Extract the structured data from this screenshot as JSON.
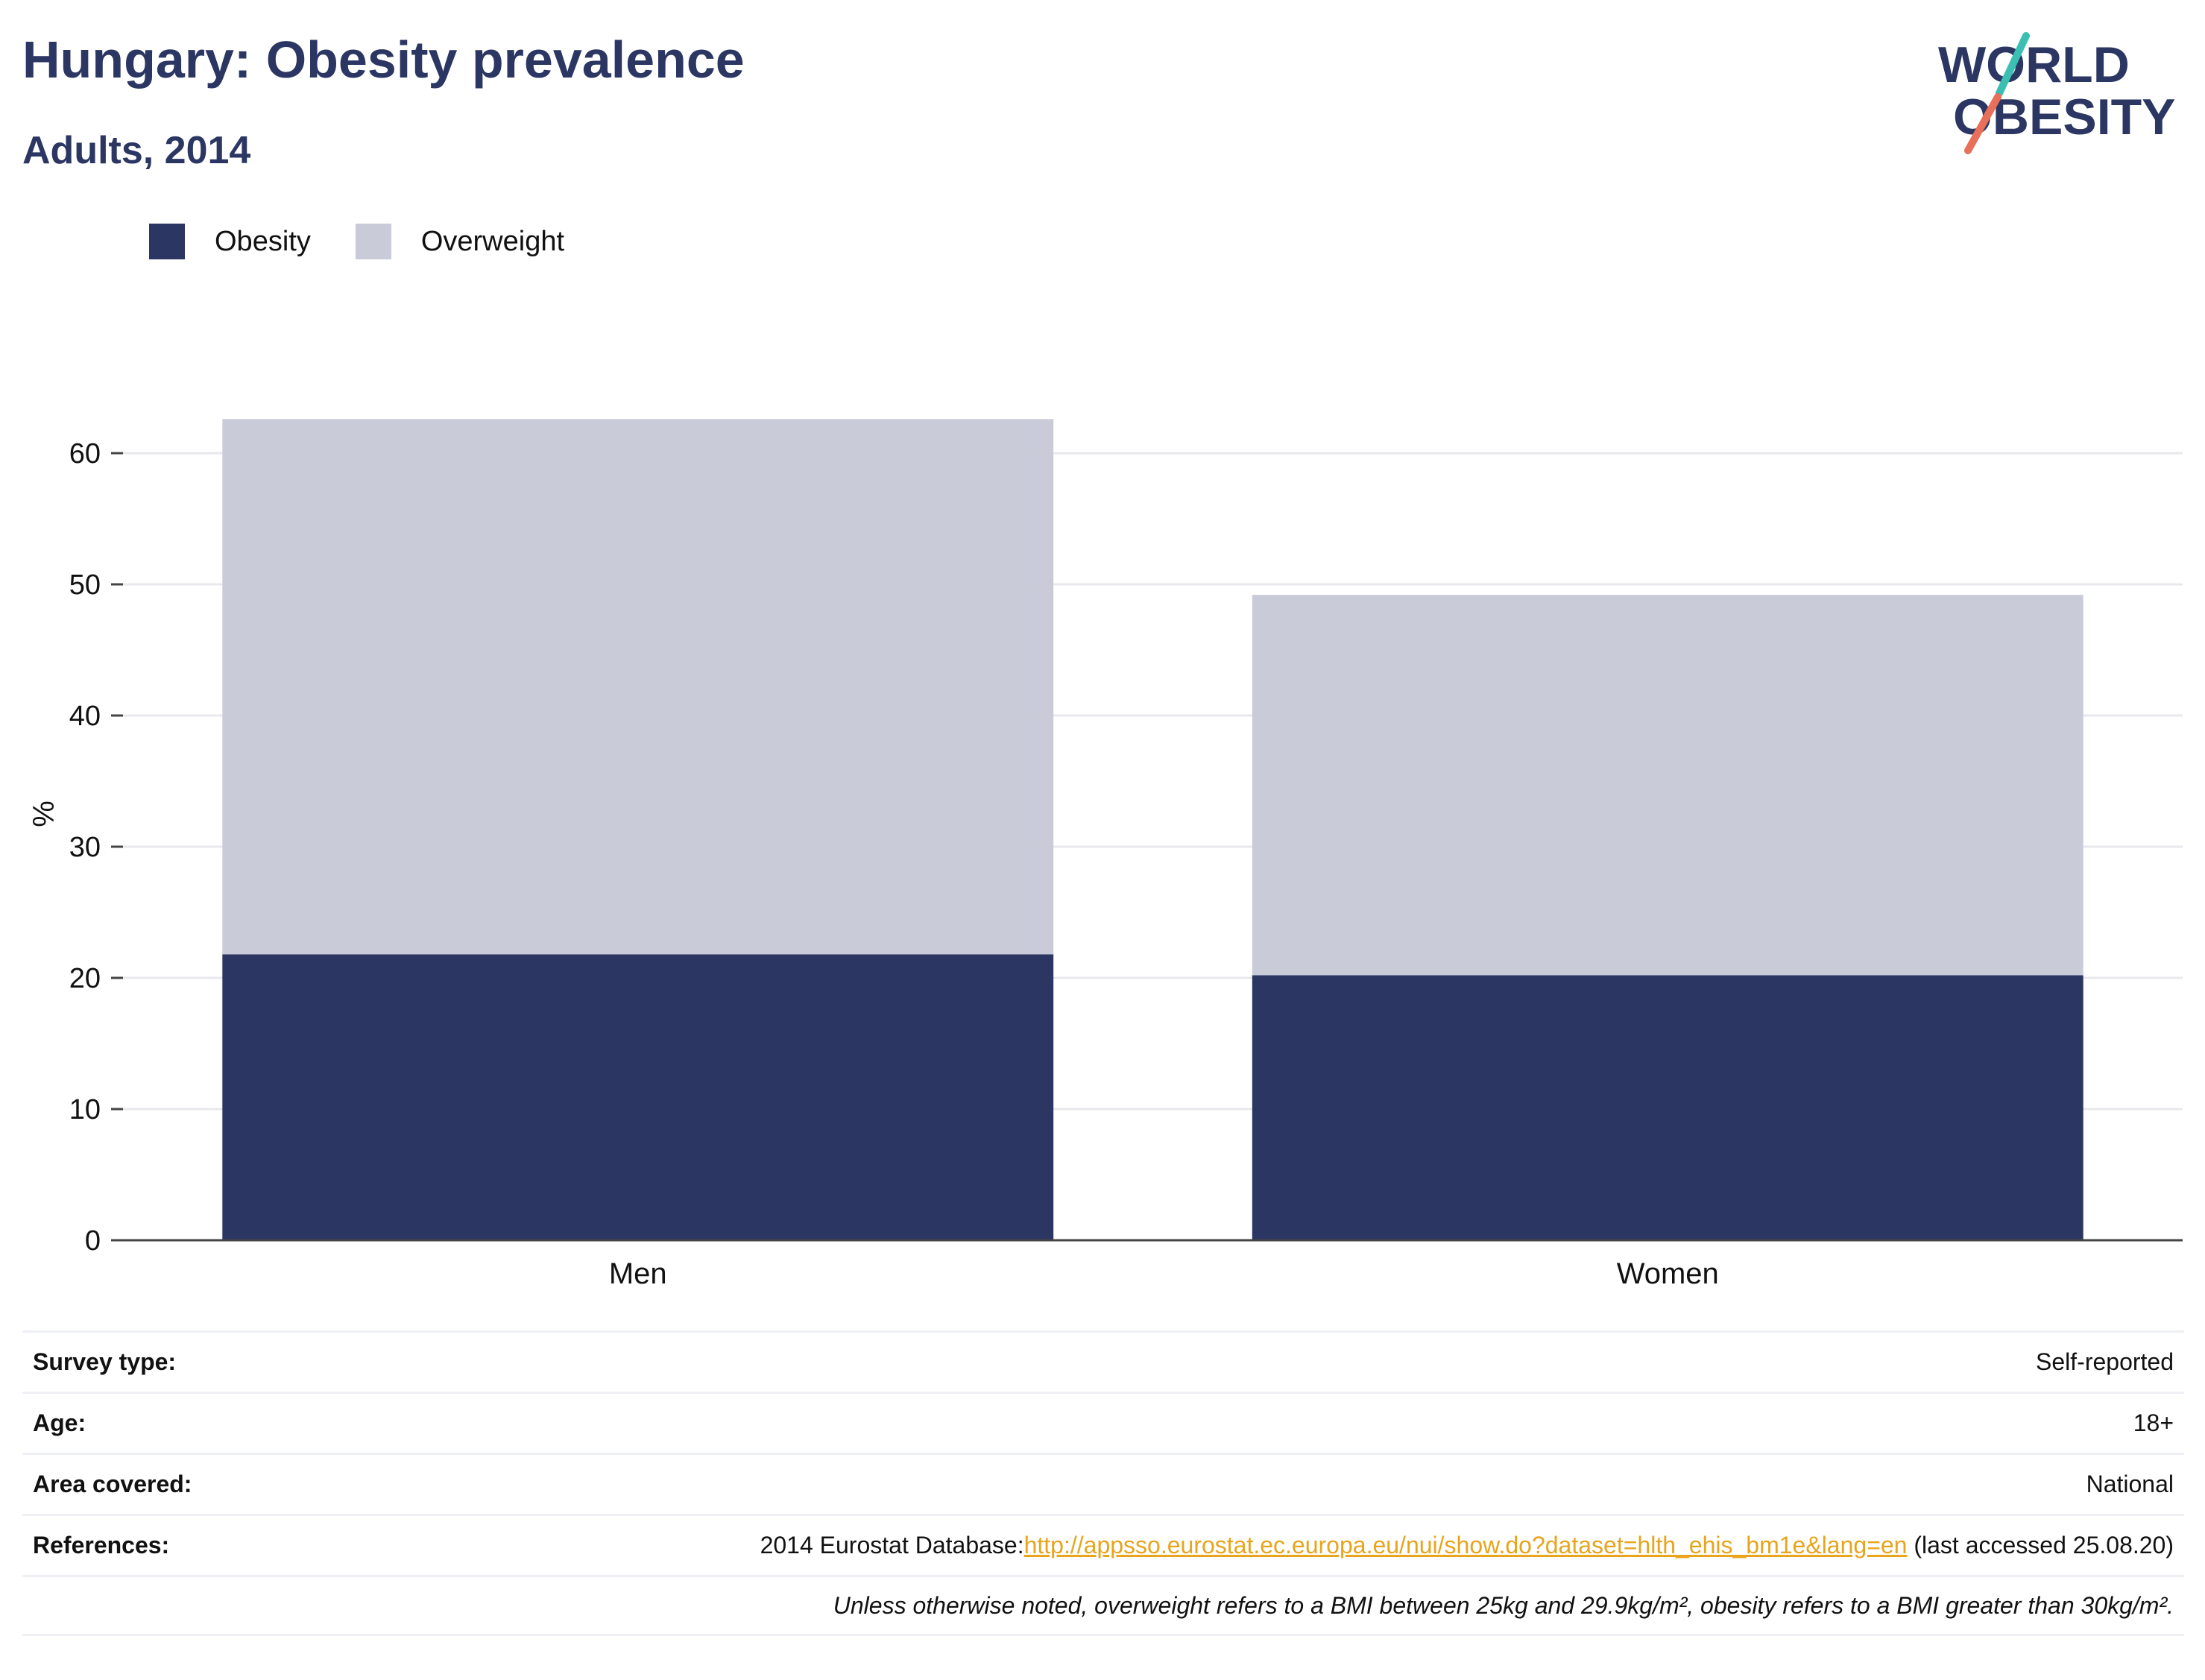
{
  "header": {
    "title": "Hungary: Obesity prevalence",
    "subtitle": "Adults, 2014"
  },
  "logo": {
    "line1": "WORLD",
    "line2": "OBESITY",
    "icon": "world-obesity-logo"
  },
  "colors": {
    "obesity": "#2b3663",
    "overweight": "#c9ccd8",
    "accent_teal": "#3bbfb3",
    "accent_coral": "#e8705a",
    "link": "#e8a51c"
  },
  "legend": [
    {
      "label": "Obesity",
      "color": "#2b3663"
    },
    {
      "label": "Overweight",
      "color": "#c9ccd8"
    }
  ],
  "chart_data": {
    "type": "bar",
    "stacked": true,
    "categories": [
      "Men",
      "Women"
    ],
    "series": [
      {
        "name": "Obesity",
        "values": [
          21.8,
          20.2
        ]
      },
      {
        "name": "Overweight",
        "values": [
          40.8,
          29.0
        ]
      }
    ],
    "ylabel": "%",
    "ylim": [
      0,
      65
    ],
    "yticks": [
      0,
      10,
      20,
      30,
      40,
      50,
      60
    ],
    "grid": true,
    "legend": "top-left"
  },
  "meta": {
    "survey_label": "Survey type:",
    "survey_value": "Self-reported",
    "age_label": "Age:",
    "age_value": "18+",
    "area_label": "Area covered:",
    "area_value": "National",
    "ref_label": "References:",
    "ref_prefix": "2014 Eurostat Database:",
    "ref_link": "http://appsso.eurostat.ec.europa.eu/nui/show.do?dataset=hlth_ehis_bm1e&lang=en",
    "ref_suffix": " (last accessed 25.08.20)",
    "note": "Unless otherwise noted, overweight refers to a BMI between 25kg and 29.9kg/m², obesity refers to a BMI greater than 30kg/m²."
  }
}
